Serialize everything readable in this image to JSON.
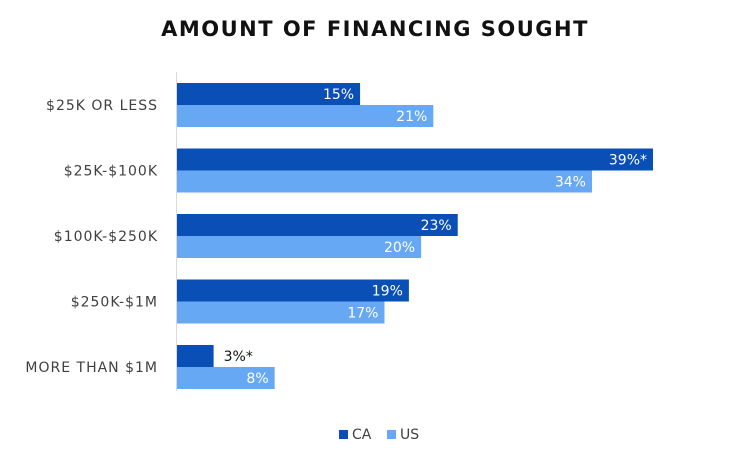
{
  "chart_data": {
    "type": "bar",
    "orientation": "horizontal",
    "title": "AMOUNT OF FINANCING SOUGHT",
    "categories": [
      "$25K OR LESS",
      "$25K-$100K",
      "$100K-$250K",
      "$250K-$1M",
      "MORE THAN $1M"
    ],
    "series": [
      {
        "name": "CA",
        "color": "#0a4fb5",
        "values": [
          15,
          39,
          23,
          19,
          3
        ],
        "labels": [
          "15%",
          "39%*",
          "23%",
          "19%",
          "3%*"
        ]
      },
      {
        "name": "US",
        "color": "#66a8f4",
        "values": [
          21,
          34,
          20,
          17,
          8
        ],
        "labels": [
          "21%",
          "34%",
          "20%",
          "17%",
          "8%"
        ]
      }
    ],
    "xlim": [
      0,
      40
    ],
    "grid": false,
    "legend": "bottom"
  }
}
